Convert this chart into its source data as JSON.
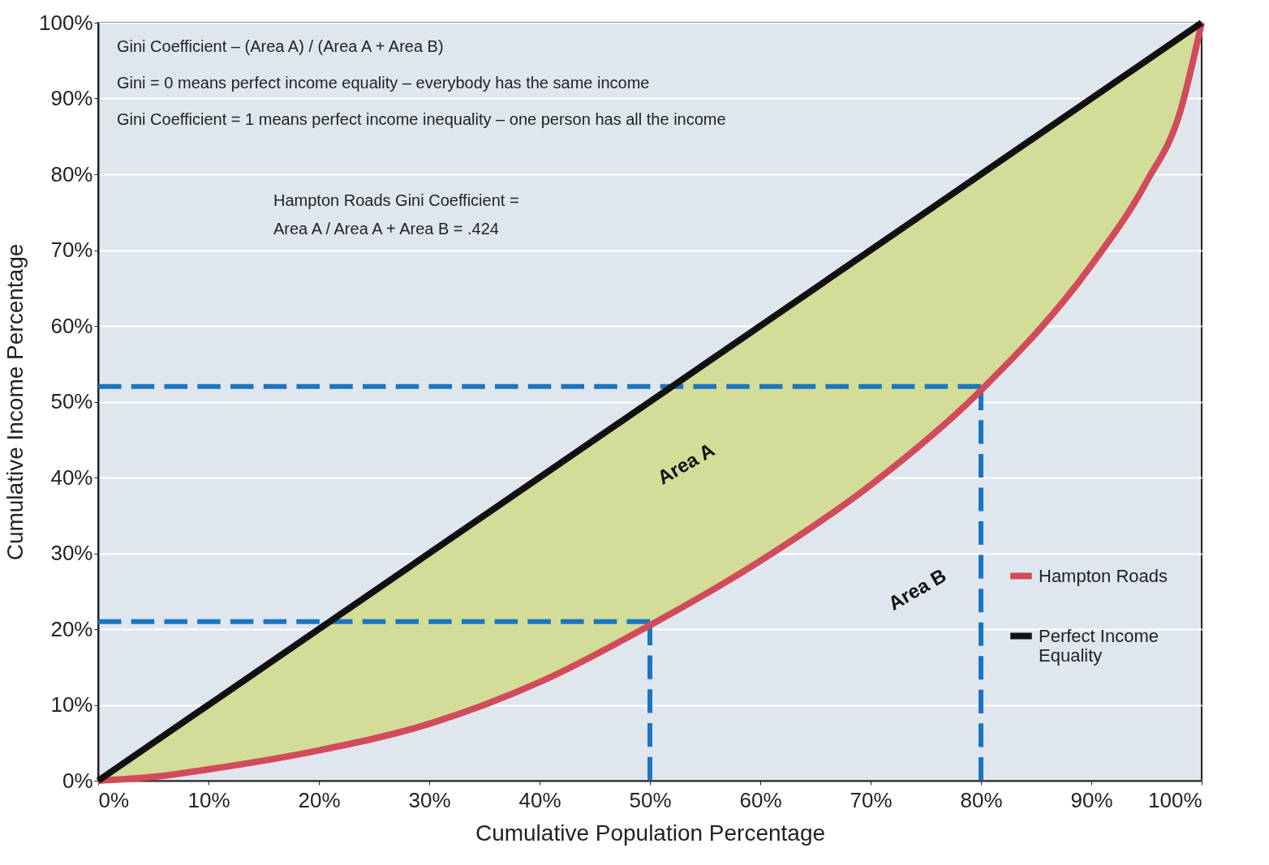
{
  "chart_data": {
    "type": "line",
    "xlabel": "Cumulative Population Percentage",
    "ylabel": "Cumulative Income Percentage",
    "xlim": [
      0,
      100
    ],
    "ylim": [
      0,
      100
    ],
    "xticks": [
      {
        "value": 0,
        "label": "0%"
      },
      {
        "value": 10,
        "label": "10%"
      },
      {
        "value": 20,
        "label": "20%"
      },
      {
        "value": 30,
        "label": "30%"
      },
      {
        "value": 40,
        "label": "40%"
      },
      {
        "value": 50,
        "label": "50%"
      },
      {
        "value": 60,
        "label": "60%"
      },
      {
        "value": 70,
        "label": "70%"
      },
      {
        "value": 80,
        "label": "80%"
      },
      {
        "value": 90,
        "label": "90%"
      },
      {
        "value": 100,
        "label": "100%"
      }
    ],
    "yticks": [
      {
        "value": 0,
        "label": "0%"
      },
      {
        "value": 10,
        "label": "10%"
      },
      {
        "value": 20,
        "label": "20%"
      },
      {
        "value": 30,
        "label": "30%"
      },
      {
        "value": 40,
        "label": "40%"
      },
      {
        "value": 50,
        "label": "50%"
      },
      {
        "value": 60,
        "label": "60%"
      },
      {
        "value": 70,
        "label": "70%"
      },
      {
        "value": 80,
        "label": "80%"
      },
      {
        "value": 90,
        "label": "90%"
      },
      {
        "value": 100,
        "label": "100%"
      }
    ],
    "grid": "y",
    "legend": "right",
    "marker": "none",
    "series": [
      {
        "color": "#1b75c2",
        "line_style": "dashed",
        "x": [
          0,
          50
        ],
        "values": [
          21,
          21
        ]
      },
      {
        "color": "#1b75c2",
        "line_style": "dashed",
        "x": [
          50,
          50
        ],
        "values": [
          0,
          21
        ]
      },
      {
        "color": "#1b75c2",
        "line_style": "dashed",
        "x": [
          0,
          80
        ],
        "values": [
          52,
          52
        ]
      },
      {
        "color": "#1b75c2",
        "line_style": "dashed",
        "x": [
          80,
          80
        ],
        "values": [
          0,
          52
        ]
      },
      {
        "name": "Hampton Roads",
        "color": "#d24b5a",
        "x": [
          0,
          5,
          10,
          20,
          30,
          40,
          50,
          60,
          70,
          80,
          90,
          95,
          98,
          100
        ],
        "values": [
          0,
          0.5,
          1.5,
          4,
          7.5,
          13,
          20.5,
          29,
          39,
          51.5,
          68,
          79,
          88,
          100
        ],
        "lower": [
          0,
          0.5,
          1.5,
          4,
          7.5,
          13,
          20.5,
          29,
          39,
          51.5,
          68,
          79,
          88,
          100
        ],
        "upper": [
          0,
          5,
          10,
          20,
          30,
          40,
          50,
          60,
          70,
          80,
          90,
          95,
          98,
          100
        ]
      },
      {
        "name": "Perfect Income Equality",
        "color": "#111111",
        "x": [
          0,
          100
        ],
        "values": [
          0,
          100
        ]
      }
    ],
    "annotations": [
      "Gini Coefficient – (Area A) / (Area A + Area B)",
      "Gini = 0 means perfect income equality – everybody has the same income",
      "Gini Coefficient = 1 means perfect income inequality – one person has all the income",
      "Hampton Roads Gini Coefficient =",
      "Area A / Area A + Area B = .424",
      "Area A",
      "Area B"
    ]
  }
}
